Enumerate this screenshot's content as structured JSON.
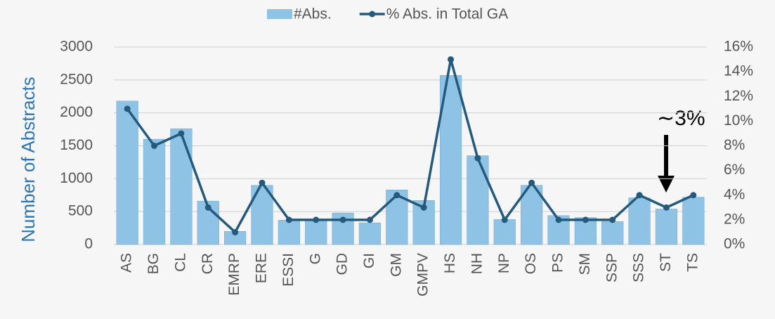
{
  "chart_data": {
    "type": "bar_line",
    "y_label": "Number of Abstracts",
    "categories": [
      "AS",
      "BG",
      "CL",
      "CR",
      "EMRP",
      "ERE",
      "ESSI",
      "G",
      "GD",
      "GI",
      "GM",
      "GMPV",
      "HS",
      "NH",
      "NP",
      "OS",
      "PS",
      "SM",
      "SSP",
      "SSS",
      "ST",
      "TS"
    ],
    "series": [
      {
        "name": "#Abs.",
        "color": "#8ec3e6",
        "values": [
          2180,
          1600,
          1760,
          660,
          200,
          900,
          370,
          370,
          480,
          330,
          830,
          670,
          2570,
          1350,
          380,
          900,
          440,
          410,
          350,
          710,
          540,
          720
        ]
      },
      {
        "name": "% Abs. in Total GA",
        "color": "#245a7e",
        "axis": "y2",
        "values": [
          11,
          8,
          9,
          3,
          1,
          5,
          2,
          2,
          2,
          2,
          4,
          3,
          15,
          7,
          2,
          5,
          2,
          2,
          2,
          4,
          3,
          4
        ]
      }
    ],
    "ylim": [
      0,
      3000
    ],
    "yticks": [
      0,
      500,
      1000,
      1500,
      2000,
      2500,
      3000
    ],
    "y2lim": [
      0,
      16
    ],
    "y2ticks": [
      {
        "value": 0,
        "label": "0%"
      },
      {
        "value": 2,
        "label": "2%"
      },
      {
        "value": 4,
        "label": "4%"
      },
      {
        "value": 6,
        "label": "6%"
      },
      {
        "value": 8,
        "label": "8%"
      },
      {
        "value": 10,
        "label": "10%"
      },
      {
        "value": 12,
        "label": "12%"
      },
      {
        "value": 14,
        "label": "14%"
      },
      {
        "value": 16,
        "label": "16%"
      }
    ],
    "grid": true,
    "annotation": "∼3%"
  }
}
